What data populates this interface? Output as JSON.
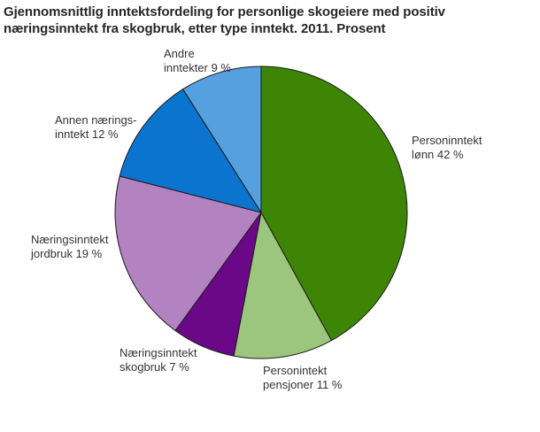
{
  "chart_data": {
    "type": "pie",
    "title": "Gjennomsnittlig inntektsfordeling for personlige skogeiere med positiv næringsinntekt fra skogbruk, etter type inntekt. 2011. Prosent",
    "unit": "Prosent",
    "start_angle_deg": 0,
    "direction": "clockwise",
    "stroke_color": "#1a1a1a",
    "background_color": "#ffffff",
    "slices": [
      {
        "label": "Personinntekt lønn",
        "value": 42,
        "color": "#3f8505",
        "label_lines": [
          "Personinntekt",
          "lønn 42 %"
        ]
      },
      {
        "label": "Personintekt pensjoner",
        "value": 11,
        "color": "#9cc67d",
        "label_lines": [
          "Personintekt",
          "pensjoner 11 %"
        ]
      },
      {
        "label": "Næringsinntekt skogbruk",
        "value": 7,
        "color": "#6b0887",
        "label_lines": [
          "Næringsinntekt",
          "skogbruk 7 %"
        ]
      },
      {
        "label": "Næringsinntekt jordbruk",
        "value": 19,
        "color": "#b282c1",
        "label_lines": [
          "Næringsinntekt",
          "jordbruk 19 %"
        ]
      },
      {
        "label": "Annen næringsinntekt",
        "value": 12,
        "color": "#0b74ce",
        "label_lines": [
          "Annen nærings-",
          "inntekt 12 %"
        ]
      },
      {
        "label": "Andre inntekter",
        "value": 9,
        "color": "#55a0de",
        "label_lines": [
          "Andre",
          "inntekter 9 %"
        ]
      }
    ]
  }
}
